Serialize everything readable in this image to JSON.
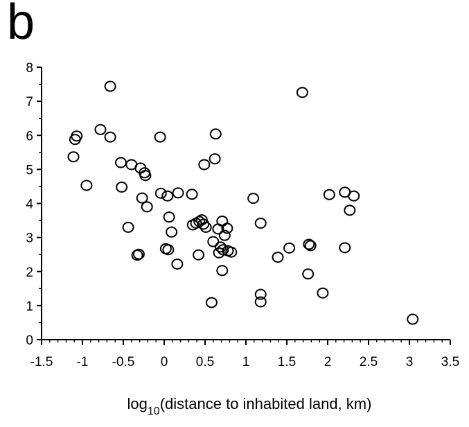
{
  "panel_label": "b",
  "chart_data": {
    "type": "scatter",
    "title": "",
    "xlabel": {
      "prefix": "log",
      "subscript": "10",
      "rest": "(distance to inhabited land, km)"
    },
    "ylabel": "",
    "xlim": [
      -1.5,
      3.5
    ],
    "ylim": [
      0,
      8
    ],
    "xticks": [
      -1.5,
      -1,
      -0.5,
      0,
      0.5,
      1,
      1.5,
      2,
      2.5,
      3,
      3.5
    ],
    "xtick_labels": [
      "-1.5",
      "-1",
      "-0.5",
      "0",
      "0.5",
      "1",
      "1.5",
      "2",
      "2.5",
      "3",
      "3.5"
    ],
    "yticks": [
      0,
      1,
      2,
      3,
      4,
      5,
      6,
      7,
      8
    ],
    "ytick_labels": [
      "0",
      "1",
      "2",
      "3",
      "4",
      "5",
      "6",
      "7",
      "8"
    ],
    "grid": false,
    "legend": "none",
    "marker": "open-circle",
    "points": [
      {
        "x": -1.09,
        "y": 5.88
      },
      {
        "x": -1.07,
        "y": 5.98
      },
      {
        "x": -1.11,
        "y": 5.37
      },
      {
        "x": -0.95,
        "y": 4.53
      },
      {
        "x": -0.78,
        "y": 6.17
      },
      {
        "x": -0.66,
        "y": 7.44
      },
      {
        "x": -0.66,
        "y": 5.95
      },
      {
        "x": -0.53,
        "y": 5.2
      },
      {
        "x": -0.4,
        "y": 5.14
      },
      {
        "x": -0.52,
        "y": 4.48
      },
      {
        "x": -0.44,
        "y": 3.3
      },
      {
        "x": -0.33,
        "y": 2.48
      },
      {
        "x": -0.31,
        "y": 2.51
      },
      {
        "x": -0.29,
        "y": 5.04
      },
      {
        "x": -0.24,
        "y": 4.9
      },
      {
        "x": -0.23,
        "y": 4.82
      },
      {
        "x": -0.27,
        "y": 4.16
      },
      {
        "x": -0.21,
        "y": 3.9
      },
      {
        "x": -0.05,
        "y": 5.95
      },
      {
        "x": -0.04,
        "y": 4.3
      },
      {
        "x": 0.04,
        "y": 4.22
      },
      {
        "x": 0.06,
        "y": 3.6
      },
      {
        "x": 0.09,
        "y": 3.16
      },
      {
        "x": 0.02,
        "y": 2.67
      },
      {
        "x": 0.05,
        "y": 2.64
      },
      {
        "x": 0.17,
        "y": 4.31
      },
      {
        "x": 0.34,
        "y": 4.27
      },
      {
        "x": 0.16,
        "y": 2.22
      },
      {
        "x": 0.35,
        "y": 3.37
      },
      {
        "x": 0.39,
        "y": 3.42
      },
      {
        "x": 0.43,
        "y": 3.47
      },
      {
        "x": 0.46,
        "y": 3.52
      },
      {
        "x": 0.48,
        "y": 3.39
      },
      {
        "x": 0.51,
        "y": 3.3
      },
      {
        "x": 0.42,
        "y": 2.49
      },
      {
        "x": 0.49,
        "y": 5.14
      },
      {
        "x": 0.63,
        "y": 6.04
      },
      {
        "x": 0.62,
        "y": 5.31
      },
      {
        "x": 0.6,
        "y": 2.88
      },
      {
        "x": 0.66,
        "y": 3.25
      },
      {
        "x": 0.71,
        "y": 3.48
      },
      {
        "x": 0.74,
        "y": 3.06
      },
      {
        "x": 0.77,
        "y": 3.27
      },
      {
        "x": 0.69,
        "y": 2.72
      },
      {
        "x": 0.72,
        "y": 2.64
      },
      {
        "x": 0.67,
        "y": 2.55
      },
      {
        "x": 0.78,
        "y": 2.61
      },
      {
        "x": 0.82,
        "y": 2.57
      },
      {
        "x": 0.71,
        "y": 2.03
      },
      {
        "x": 0.58,
        "y": 1.09
      },
      {
        "x": 1.09,
        "y": 4.15
      },
      {
        "x": 1.18,
        "y": 3.42
      },
      {
        "x": 1.18,
        "y": 1.33
      },
      {
        "x": 1.18,
        "y": 1.11
      },
      {
        "x": 1.39,
        "y": 2.42
      },
      {
        "x": 1.53,
        "y": 2.69
      },
      {
        "x": 1.69,
        "y": 7.26
      },
      {
        "x": 1.77,
        "y": 2.8
      },
      {
        "x": 1.79,
        "y": 2.76
      },
      {
        "x": 1.76,
        "y": 1.93
      },
      {
        "x": 1.94,
        "y": 1.37
      },
      {
        "x": 2.02,
        "y": 4.26
      },
      {
        "x": 2.21,
        "y": 4.33
      },
      {
        "x": 2.21,
        "y": 2.7
      },
      {
        "x": 2.27,
        "y": 3.8
      },
      {
        "x": 2.32,
        "y": 4.22
      },
      {
        "x": 3.04,
        "y": 0.6
      }
    ]
  }
}
